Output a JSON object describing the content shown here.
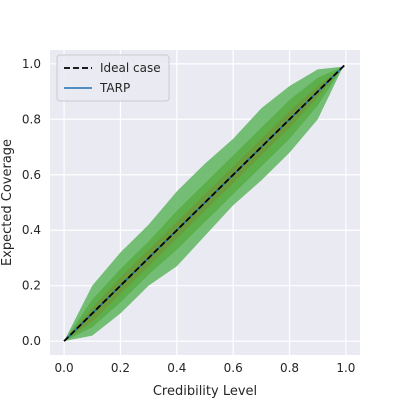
{
  "chart_data": {
    "type": "area",
    "xlabel": "Credibility Level",
    "ylabel": "Expected Coverage",
    "xlim": [
      -0.05,
      1.05
    ],
    "ylim": [
      -0.05,
      1.05
    ],
    "xticks": [
      0.0,
      0.2,
      0.4,
      0.6,
      0.8,
      1.0
    ],
    "yticks": [
      0.0,
      0.2,
      0.4,
      0.6,
      0.8,
      1.0
    ],
    "tick_labels_x": [
      "0.0",
      "0.2",
      "0.4",
      "0.6",
      "0.8",
      "1.0"
    ],
    "tick_labels_y": [
      "0.0",
      "0.2",
      "0.4",
      "0.6",
      "0.8",
      "1.0"
    ],
    "grid": true,
    "legend": {
      "placement": "top-left",
      "entries": [
        "Ideal case",
        "TARP"
      ]
    },
    "colors": {
      "background": "#eaeaf2",
      "grid": "#ffffff",
      "band_outer": "#5eb55e",
      "band_inner": "#59ad45",
      "band_core": "#6f9a3a",
      "tarp": "#1f6fb4",
      "ideal": "#000000"
    },
    "ideal": {
      "name": "Ideal case",
      "x": [
        0,
        1
      ],
      "y": [
        0,
        1
      ],
      "style": "dashed"
    },
    "tarp": {
      "name": "TARP",
      "x": [
        0,
        0.1,
        0.2,
        0.3,
        0.4,
        0.5,
        0.6,
        0.7,
        0.8,
        0.9,
        0.99
      ],
      "y": [
        0,
        0.1,
        0.2,
        0.3,
        0.4,
        0.5,
        0.6,
        0.7,
        0.8,
        0.9,
        0.99
      ]
    },
    "bands": [
      {
        "level": "outer",
        "x": [
          0,
          0.1,
          0.2,
          0.3,
          0.4,
          0.5,
          0.6,
          0.7,
          0.8,
          0.9,
          0.99
        ],
        "lower": [
          0,
          0.02,
          0.1,
          0.2,
          0.27,
          0.38,
          0.49,
          0.58,
          0.68,
          0.8,
          0.99
        ],
        "upper": [
          0,
          0.2,
          0.32,
          0.42,
          0.54,
          0.64,
          0.73,
          0.84,
          0.92,
          0.98,
          0.99
        ]
      },
      {
        "level": "middle",
        "x": [
          0,
          0.1,
          0.2,
          0.3,
          0.4,
          0.5,
          0.6,
          0.7,
          0.8,
          0.9,
          0.99
        ],
        "lower": [
          0,
          0.05,
          0.14,
          0.24,
          0.33,
          0.43,
          0.53,
          0.63,
          0.73,
          0.85,
          0.99
        ],
        "upper": [
          0,
          0.15,
          0.26,
          0.36,
          0.47,
          0.57,
          0.67,
          0.77,
          0.87,
          0.95,
          0.99
        ]
      },
      {
        "level": "inner",
        "x": [
          0,
          0.1,
          0.2,
          0.3,
          0.4,
          0.5,
          0.6,
          0.7,
          0.8,
          0.9,
          0.99
        ],
        "lower": [
          0,
          0.07,
          0.17,
          0.27,
          0.37,
          0.47,
          0.57,
          0.67,
          0.77,
          0.88,
          0.99
        ],
        "upper": [
          0,
          0.12,
          0.23,
          0.33,
          0.43,
          0.53,
          0.63,
          0.73,
          0.83,
          0.92,
          0.99
        ]
      }
    ]
  }
}
